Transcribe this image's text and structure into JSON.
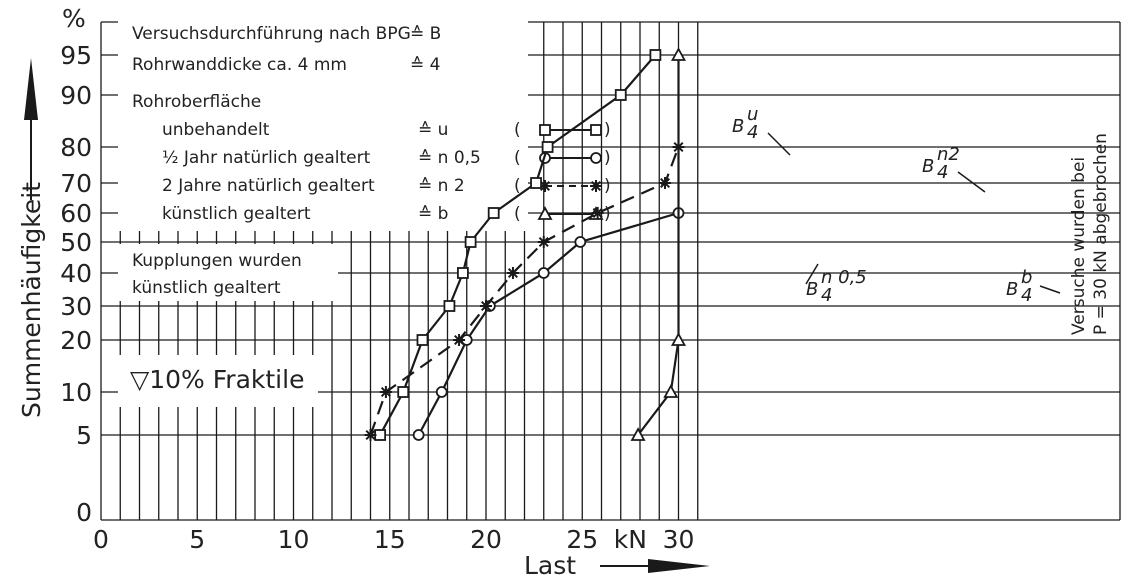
{
  "chart_data": {
    "type": "line",
    "x_range": [
      0,
      32
    ],
    "y_unit_label": "%",
    "xlabel": "Last",
    "ylabel": "Summenhäufigkeit",
    "x_ticks": [
      {
        "value": 0,
        "label": "0"
      },
      {
        "value": 5,
        "label": "5"
      },
      {
        "value": 10,
        "label": "10"
      },
      {
        "value": 15,
        "label": "15"
      },
      {
        "value": 20,
        "label": "20"
      },
      {
        "value": 25,
        "label": "25"
      },
      {
        "value": 27.5,
        "label": "kN"
      },
      {
        "value": 30,
        "label": "30"
      }
    ],
    "y_ticks": [
      "0",
      "5",
      "10",
      "20",
      "30",
      "40",
      "50",
      "60",
      "70",
      "80",
      "90",
      "95"
    ],
    "series": [
      {
        "name": "u",
        "marker": "square",
        "dash": "solid",
        "label_text": "B",
        "label_sup": "u",
        "label_sub": "4",
        "points": [
          [
            14.5,
            "5"
          ],
          [
            15.7,
            "10"
          ],
          [
            16.7,
            "20"
          ],
          [
            18.1,
            "30"
          ],
          [
            18.8,
            "40"
          ],
          [
            19.2,
            "50"
          ],
          [
            20.4,
            "60"
          ],
          [
            22.6,
            "70"
          ],
          [
            23.2,
            "80"
          ],
          [
            27.0,
            "90"
          ],
          [
            28.8,
            "95"
          ]
        ]
      },
      {
        "name": "n 0,5",
        "marker": "circle",
        "dash": "solid",
        "label_text": "B",
        "label_sup": "n 0,5",
        "label_sub": "4",
        "points": [
          [
            16.5,
            "5"
          ],
          [
            17.7,
            "10"
          ],
          [
            19.0,
            "20"
          ],
          [
            20.2,
            "30"
          ],
          [
            23.0,
            "40"
          ],
          [
            24.9,
            "50"
          ],
          [
            30.0,
            "60"
          ]
        ]
      },
      {
        "name": "n 2",
        "marker": "star",
        "dash": "dashed",
        "label_text": "B",
        "label_sup": "n2",
        "label_sub": "4",
        "points": [
          [
            14.0,
            "5"
          ],
          [
            14.8,
            "10"
          ],
          [
            18.6,
            "20"
          ],
          [
            20.0,
            "30"
          ],
          [
            21.4,
            "40"
          ],
          [
            23.0,
            "50"
          ],
          [
            25.8,
            "60"
          ],
          [
            29.3,
            "70"
          ],
          [
            30.0,
            "80"
          ]
        ]
      },
      {
        "name": "b",
        "marker": "triangle",
        "dash": "solid",
        "label_text": "B",
        "label_sup": "b",
        "label_sub": "4",
        "points": [
          [
            27.9,
            "5"
          ],
          [
            29.6,
            "10"
          ],
          [
            30.0,
            "20"
          ],
          [
            30.0,
            "95"
          ]
        ]
      }
    ],
    "legend": {
      "line1": "Versuchsdurchführung nach BPG",
      "line1_eq": "≙ B",
      "line2": "Rohrwanddicke ca. 4 mm",
      "line2_eq": "≙ 4",
      "header": "Rohroberfläche",
      "entries": [
        {
          "text": "unbehandelt",
          "eq": "≙ u"
        },
        {
          "text": "½ Jahr natürlich gealtert",
          "eq": "≙ n 0,5"
        },
        {
          "text": "2 Jahre natürlich gealtert",
          "eq": "≙ n 2"
        },
        {
          "text": "künstlich gealtert",
          "eq": "≙ b"
        }
      ],
      "note_line1": "Kupplungen wurden",
      "note_line2": "künstlich gealtert",
      "fractile": "▽10% Fraktile"
    },
    "annotation": {
      "line1": "Versuche wurden bei",
      "line2": "P = 30 kN abgebrochen"
    }
  }
}
